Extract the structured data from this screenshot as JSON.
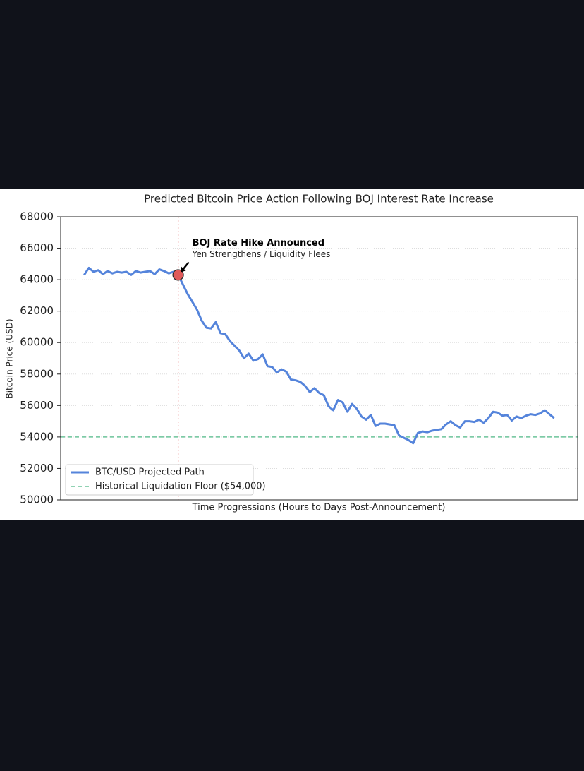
{
  "chart_data": {
    "type": "line",
    "title": "Predicted Bitcoin Price Action Following BOJ Interest Rate Increase",
    "x_label": "Time Progressions (Hours to Days Post-Announcement)",
    "y_label": "Bitcoin Price (USD)",
    "xlim": [
      -5,
      105
    ],
    "ylim": [
      50000,
      68000
    ],
    "yticks": [
      50000,
      52000,
      54000,
      56000,
      58000,
      60000,
      62000,
      64000,
      66000,
      68000
    ],
    "grid": true,
    "legend": "lower left",
    "series": [
      {
        "name": "BTC/USD Projected Path",
        "color": "#5584db",
        "values": [
          64300,
          64750,
          64500,
          64600,
          64350,
          64550,
          64400,
          64500,
          64450,
          64500,
          64300,
          64550,
          64450,
          64500,
          64550,
          64350,
          64650,
          64550,
          64400,
          64500,
          64300,
          63700,
          63100,
          62600,
          62100,
          61400,
          60950,
          60900,
          61300,
          60600,
          60550,
          60100,
          59800,
          59500,
          59000,
          59300,
          58850,
          58950,
          59250,
          58500,
          58450,
          58100,
          58300,
          58150,
          57650,
          57600,
          57500,
          57250,
          56850,
          57100,
          56800,
          56650,
          55950,
          55700,
          56350,
          56200,
          55600,
          56100,
          55800,
          55300,
          55100,
          55400,
          54700,
          54850,
          54850,
          54800,
          54750,
          54100,
          53950,
          53800,
          53600,
          54250,
          54350,
          54300,
          54400,
          54450,
          54500,
          54800,
          55000,
          54750,
          54600,
          55000,
          55000,
          54950,
          55100,
          54900,
          55200,
          55600,
          55550,
          55350,
          55400,
          55050,
          55300,
          55200,
          55350,
          55450,
          55400,
          55500,
          55700,
          55450,
          55200
        ]
      }
    ],
    "reference_lines": [
      {
        "name": "Historical Liquidation Floor ($54,000)",
        "value": 54000,
        "color": "#6cc49a"
      }
    ],
    "event": {
      "x": 20,
      "value_index": 20,
      "color": "#e05a5a",
      "title": "BOJ Rate Hike Announced",
      "subtitle": "Yen Strengthens / Liquidity Flees"
    }
  }
}
